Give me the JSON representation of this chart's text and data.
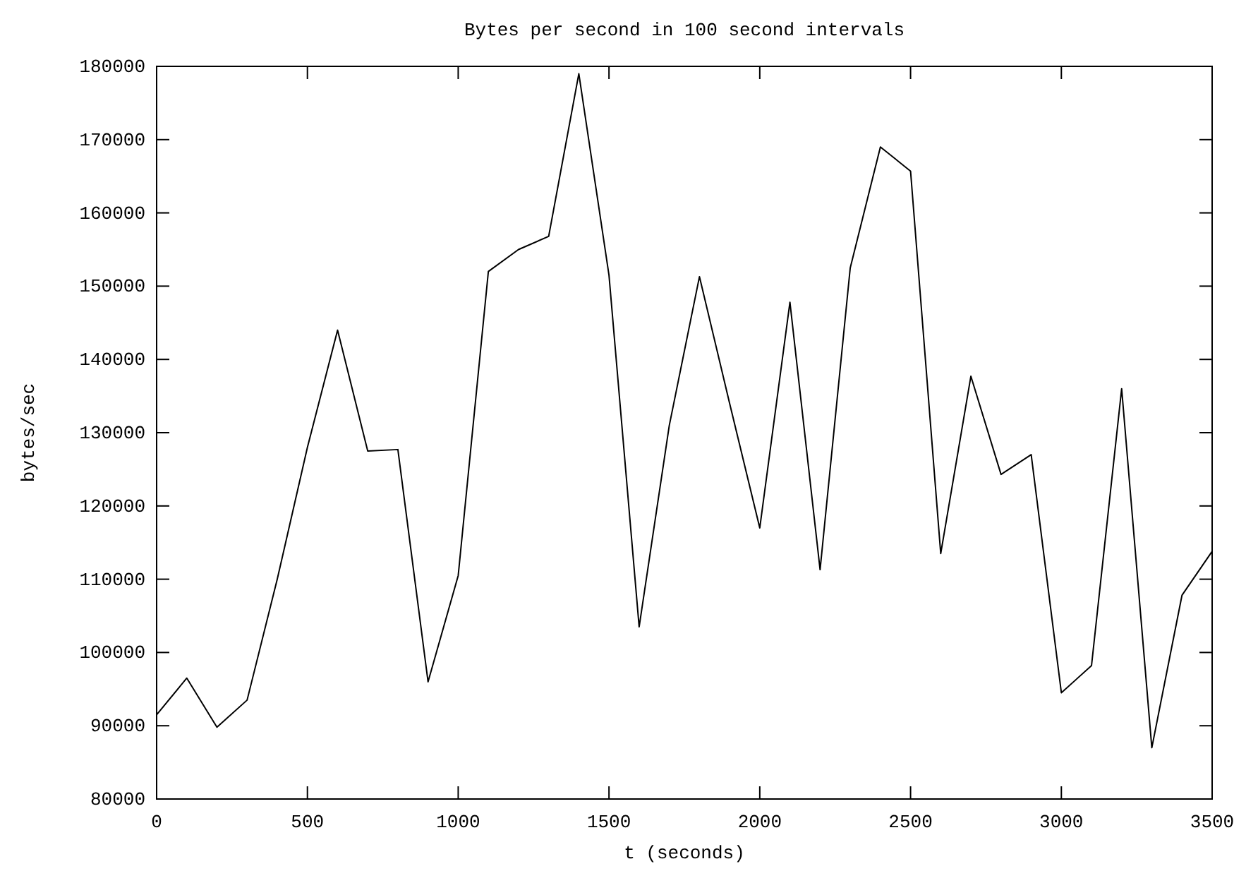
{
  "chart_data": {
    "type": "line",
    "title": "Bytes per second in 100 second intervals",
    "xlabel": "t (seconds)",
    "ylabel": "bytes/sec",
    "x": [
      0,
      100,
      200,
      300,
      400,
      500,
      600,
      700,
      800,
      900,
      1000,
      1100,
      1200,
      1300,
      1400,
      1500,
      1600,
      1700,
      1800,
      1900,
      2000,
      2100,
      2200,
      2300,
      2400,
      2500,
      2600,
      2700,
      2800,
      2900,
      3000,
      3100,
      3200,
      3300,
      3400,
      3500
    ],
    "series": [
      {
        "color": "#000000",
        "values": [
          91500,
          96500,
          89800,
          93500,
          110000,
          128000,
          144000,
          127500,
          127700,
          96000,
          110500,
          152000,
          155000,
          156800,
          179000,
          151500,
          103500,
          131000,
          151300,
          134000,
          117000,
          147800,
          111300,
          152500,
          169000,
          165700,
          113500,
          137700,
          124300,
          127000,
          94500,
          98200,
          136000,
          87000,
          107800,
          113800
        ]
      }
    ],
    "xlim": [
      0,
      3500
    ],
    "xticks": [
      0,
      500,
      1000,
      1500,
      2000,
      2500,
      3000,
      3500
    ],
    "ylim": [
      80000,
      180000
    ],
    "yticks": [
      80000,
      90000,
      100000,
      110000,
      120000,
      130000,
      140000,
      150000,
      160000,
      170000,
      180000
    ],
    "grid": false,
    "marker": "none",
    "line_style": "solid"
  }
}
